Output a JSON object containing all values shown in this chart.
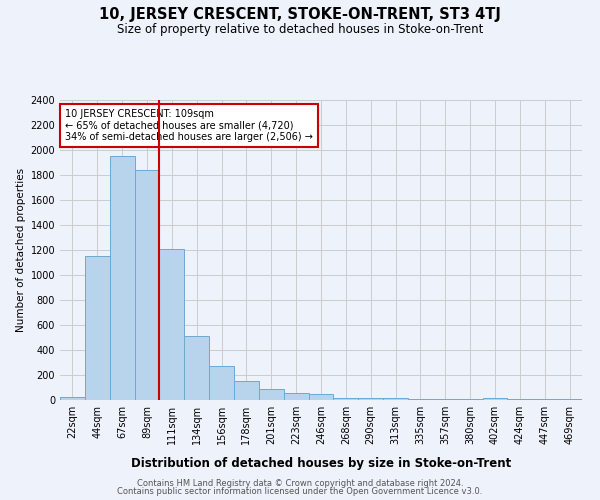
{
  "title": "10, JERSEY CRESCENT, STOKE-ON-TRENT, ST3 4TJ",
  "subtitle": "Size of property relative to detached houses in Stoke-on-Trent",
  "xlabel": "Distribution of detached houses by size in Stoke-on-Trent",
  "ylabel": "Number of detached properties",
  "footer_line1": "Contains HM Land Registry data © Crown copyright and database right 2024.",
  "footer_line2": "Contains public sector information licensed under the Open Government Licence v3.0.",
  "annotation_title": "10 JERSEY CRESCENT: 109sqm",
  "annotation_line1": "← 65% of detached houses are smaller (4,720)",
  "annotation_line2": "34% of semi-detached houses are larger (2,506) →",
  "bar_labels": [
    "22sqm",
    "44sqm",
    "67sqm",
    "89sqm",
    "111sqm",
    "134sqm",
    "156sqm",
    "178sqm",
    "201sqm",
    "223sqm",
    "246sqm",
    "268sqm",
    "290sqm",
    "313sqm",
    "335sqm",
    "357sqm",
    "380sqm",
    "402sqm",
    "424sqm",
    "447sqm",
    "469sqm"
  ],
  "bar_values": [
    25,
    1150,
    1950,
    1840,
    1210,
    510,
    270,
    155,
    85,
    55,
    45,
    20,
    18,
    15,
    10,
    8,
    5,
    20,
    5,
    5,
    10
  ],
  "bar_color": "#b8d4ec",
  "bar_edge_color": "#6aaad4",
  "vline_index": 4,
  "vline_color": "#cc0000",
  "ylim": [
    0,
    2400
  ],
  "yticks": [
    0,
    200,
    400,
    600,
    800,
    1000,
    1200,
    1400,
    1600,
    1800,
    2000,
    2200,
    2400
  ],
  "grid_color": "#cccccc",
  "bg_color": "#eef2fb",
  "annotation_box_color": "#ffffff",
  "annotation_box_edge": "#cc0000",
  "title_fontsize": 10.5,
  "subtitle_fontsize": 8.5,
  "xlabel_fontsize": 8.5,
  "ylabel_fontsize": 7.5,
  "tick_fontsize": 7,
  "annotation_fontsize": 7,
  "footer_fontsize": 6
}
